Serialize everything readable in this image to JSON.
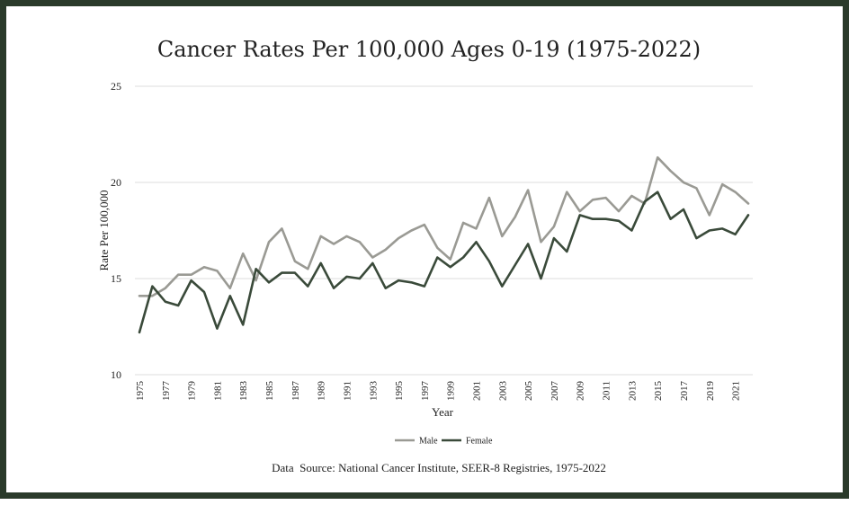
{
  "chart_data": {
    "type": "line",
    "title": "Cancer Rates Per 100,000 Ages 0-19 (1975-2022)",
    "xlabel": "Year",
    "ylabel": "Rate Per 100,000",
    "ylim": [
      10,
      25
    ],
    "yticks": [
      10,
      15,
      20,
      25
    ],
    "grid": true,
    "legend_position": "bottom",
    "x": [
      1975,
      1976,
      1977,
      1978,
      1979,
      1980,
      1981,
      1982,
      1983,
      1984,
      1985,
      1986,
      1987,
      1988,
      1989,
      1990,
      1991,
      1992,
      1993,
      1994,
      1995,
      1996,
      1997,
      1998,
      1999,
      2000,
      2001,
      2002,
      2003,
      2004,
      2005,
      2006,
      2007,
      2008,
      2009,
      2010,
      2011,
      2012,
      2013,
      2014,
      2015,
      2016,
      2017,
      2018,
      2019,
      2020,
      2021,
      2022
    ],
    "xticklabels": [
      "1975",
      "1977",
      "1979",
      "1981",
      "1983",
      "1985",
      "1987",
      "1989",
      "1991",
      "1993",
      "1995",
      "1997",
      "1999",
      "2001",
      "2003",
      "2005",
      "2007",
      "2009",
      "2011",
      "2013",
      "2015",
      "2017",
      "2019",
      "2021"
    ],
    "series": [
      {
        "name": "Male",
        "color": "#9a9a94",
        "values": [
          14.1,
          14.1,
          14.5,
          15.2,
          15.2,
          15.6,
          15.4,
          14.5,
          16.3,
          14.9,
          16.9,
          17.6,
          15.9,
          15.5,
          17.2,
          16.8,
          17.2,
          16.9,
          16.1,
          16.5,
          17.1,
          17.5,
          17.8,
          16.6,
          16.0,
          17.9,
          17.6,
          19.2,
          17.2,
          18.2,
          19.6,
          16.9,
          17.7,
          19.5,
          18.5,
          19.1,
          19.2,
          18.5,
          19.3,
          18.9,
          21.3,
          20.6,
          20.0,
          19.7,
          18.3,
          19.9,
          19.5,
          18.9
        ]
      },
      {
        "name": "Female",
        "color": "#3a4a3a",
        "values": [
          12.2,
          14.6,
          13.8,
          13.6,
          14.9,
          14.3,
          12.4,
          14.1,
          12.6,
          15.5,
          14.8,
          15.3,
          15.3,
          14.6,
          15.8,
          14.5,
          15.1,
          15.0,
          15.8,
          14.5,
          14.9,
          14.8,
          14.6,
          16.1,
          15.6,
          16.1,
          16.9,
          15.9,
          14.6,
          15.7,
          16.8,
          15.0,
          17.1,
          16.4,
          18.3,
          18.1,
          18.1,
          18.0,
          17.5,
          19.0,
          19.5,
          18.1,
          18.6,
          17.1,
          17.5,
          17.6,
          17.3,
          18.3
        ]
      }
    ]
  },
  "source_text": "Data  Source: National Cancer Institute, SEER-8 Registries, 1975-2022"
}
